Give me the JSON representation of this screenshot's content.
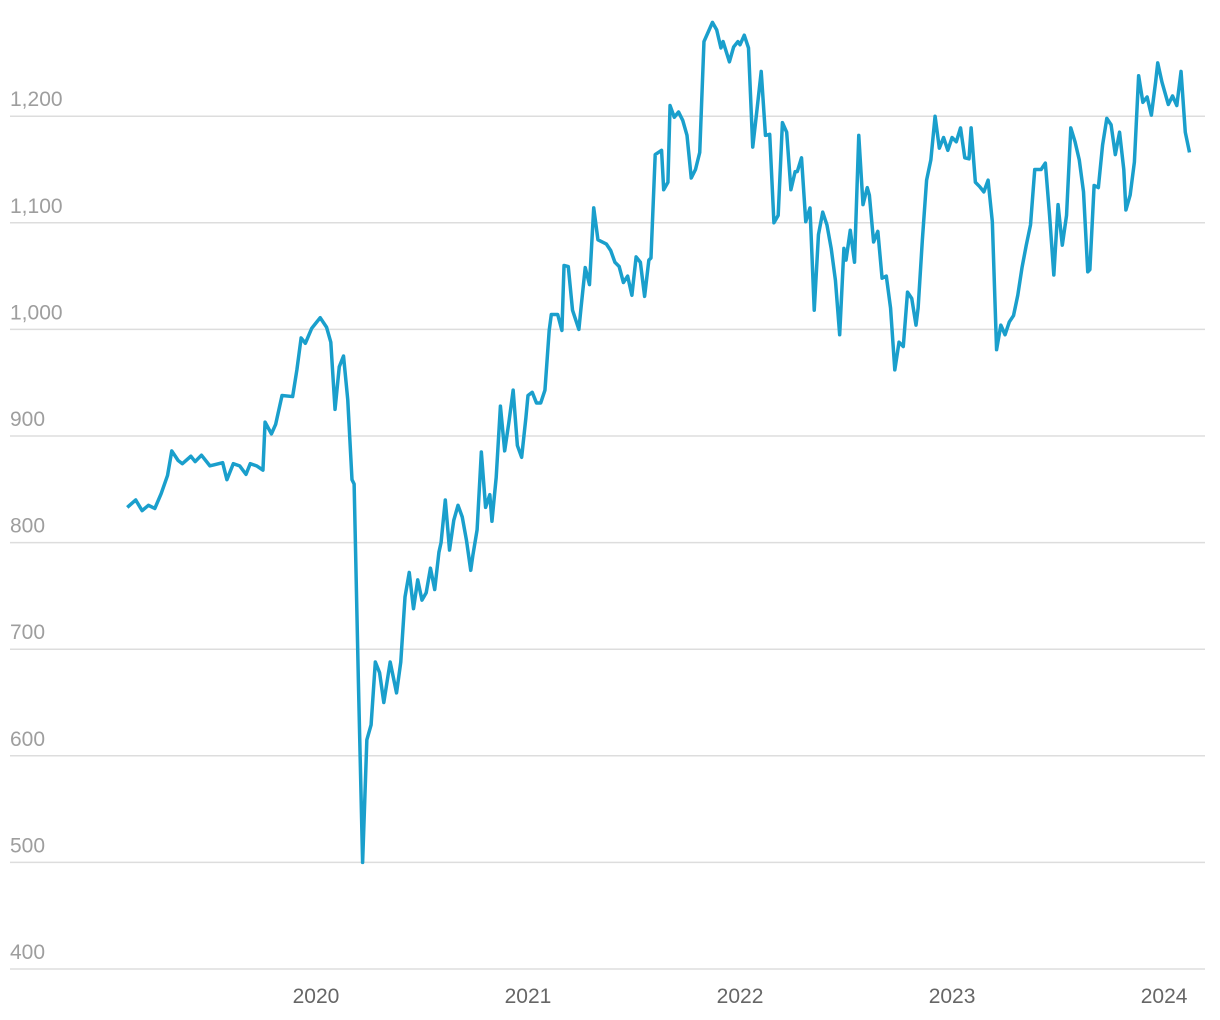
{
  "chart_data": {
    "type": "line",
    "color": "#1a9fcc",
    "grid": true,
    "xlim": [
      2018.557,
      2024.193
    ],
    "xticks": [
      2020,
      2021,
      2022,
      2023,
      2024
    ],
    "ylim": [
      400,
      1300
    ],
    "yticks": [
      400,
      500,
      600,
      700,
      800,
      900,
      {
        "value": 1000,
        "label": "1,000"
      },
      {
        "value": 1100,
        "label": "1,100"
      },
      {
        "value": 1200,
        "label": "1,200"
      }
    ],
    "x": [
      2019.11,
      2019.15,
      2019.18,
      2019.21,
      2019.24,
      2019.27,
      2019.3,
      2019.32,
      2019.35,
      2019.37,
      2019.41,
      2019.43,
      2019.46,
      2019.5,
      2019.52,
      2019.56,
      2019.58,
      2019.61,
      2019.64,
      2019.67,
      2019.69,
      2019.72,
      2019.75,
      2019.76,
      2019.79,
      2019.81,
      2019.84,
      2019.89,
      2019.91,
      2019.93,
      2019.95,
      2019.98,
      2020.0,
      2020.02,
      2020.05,
      2020.07,
      2020.09,
      2020.11,
      2020.13,
      2020.15,
      2020.17,
      2020.18,
      2020.2,
      2020.22,
      2020.24,
      2020.26,
      2020.28,
      2020.3,
      2020.32,
      2020.35,
      2020.38,
      2020.4,
      2020.42,
      2020.44,
      2020.46,
      2020.48,
      2020.5,
      2020.52,
      2020.54,
      2020.56,
      2020.58,
      2020.59,
      2020.61,
      2020.63,
      2020.65,
      2020.67,
      2020.69,
      2020.71,
      2020.73,
      2020.74,
      2020.76,
      2020.78,
      2020.8,
      2020.82,
      2020.83,
      2020.85,
      2020.87,
      2020.89,
      2020.91,
      2020.93,
      2020.95,
      2020.97,
      2020.99,
      2021.0,
      2021.02,
      2021.04,
      2021.06,
      2021.08,
      2021.1,
      2021.11,
      2021.14,
      2021.16,
      2021.17,
      2021.19,
      2021.21,
      2021.24,
      2021.25,
      2021.27,
      2021.29,
      2021.31,
      2021.33,
      2021.35,
      2021.37,
      2021.39,
      2021.41,
      2021.43,
      2021.45,
      2021.47,
      2021.49,
      2021.51,
      2021.53,
      2021.55,
      2021.57,
      2021.58,
      2021.6,
      2021.63,
      2021.64,
      2021.66,
      2021.67,
      2021.69,
      2021.71,
      2021.73,
      2021.75,
      2021.77,
      2021.79,
      2021.81,
      2021.83,
      2021.85,
      2021.87,
      2021.89,
      2021.91,
      2021.92,
      2021.95,
      2021.97,
      2021.99,
      2022.0,
      2022.02,
      2022.04,
      2022.06,
      2022.08,
      2022.1,
      2022.12,
      2022.14,
      2022.16,
      2022.18,
      2022.2,
      2022.22,
      2022.24,
      2022.26,
      2022.27,
      2022.29,
      2022.31,
      2022.33,
      2022.35,
      2022.37,
      2022.39,
      2022.41,
      2022.43,
      2022.45,
      2022.47,
      2022.49,
      2022.5,
      2022.52,
      2022.54,
      2022.56,
      2022.58,
      2022.6,
      2022.61,
      2022.63,
      2022.65,
      2022.67,
      2022.69,
      2022.71,
      2022.73,
      2022.75,
      2022.77,
      2022.79,
      2022.81,
      2022.83,
      2022.84,
      2022.86,
      2022.88,
      2022.9,
      2022.92,
      2022.94,
      2022.96,
      2022.98,
      2023.0,
      2023.02,
      2023.04,
      2023.06,
      2023.08,
      2023.09,
      2023.11,
      2023.13,
      2023.15,
      2023.17,
      2023.19,
      2023.21,
      2023.23,
      2023.25,
      2023.27,
      2023.29,
      2023.31,
      2023.33,
      2023.35,
      2023.37,
      2023.39,
      2023.41,
      2023.42,
      2023.44,
      2023.46,
      2023.48,
      2023.5,
      2023.52,
      2023.54,
      2023.56,
      2023.58,
      2023.6,
      2023.62,
      2023.64,
      2023.65,
      2023.67,
      2023.69,
      2023.71,
      2023.73,
      2023.75,
      2023.77,
      2023.79,
      2023.81,
      2023.82,
      2023.84,
      2023.86,
      2023.88,
      2023.9,
      2023.92,
      2023.94,
      2023.96,
      2023.97,
      2023.99,
      2024.02,
      2024.04,
      2024.06,
      2024.08,
      2024.1,
      2024.12
    ],
    "values": [
      833,
      840,
      830,
      835,
      832,
      846,
      863,
      886,
      877,
      874,
      881,
      876,
      882,
      872,
      873,
      875,
      859,
      874,
      872,
      864,
      874,
      872,
      868,
      913,
      902,
      911,
      938,
      937,
      962,
      992,
      987,
      1001,
      1006,
      1011,
      1002,
      988,
      925,
      965,
      975,
      934,
      859,
      855,
      671,
      500,
      615,
      629,
      688,
      678,
      650,
      688,
      659,
      688,
      749,
      772,
      738,
      765,
      746,
      753,
      776,
      756,
      791,
      800,
      840,
      793,
      821,
      835,
      824,
      802,
      774,
      788,
      812,
      885,
      833,
      845,
      820,
      861,
      928,
      886,
      913,
      943,
      891,
      880,
      917,
      938,
      941,
      931,
      931,
      943,
      999,
      1014,
      1014,
      999,
      1060,
      1059,
      1018,
      1000,
      1020,
      1058,
      1042,
      1114,
      1084,
      1082,
      1080,
      1074,
      1063,
      1059,
      1044,
      1050,
      1032,
      1068,
      1063,
      1031,
      1065,
      1067,
      1164,
      1168,
      1131,
      1138,
      1210,
      1199,
      1204,
      1196,
      1182,
      1142,
      1150,
      1166,
      1270,
      1279,
      1288,
      1281,
      1264,
      1270,
      1251,
      1265,
      1270,
      1267,
      1276,
      1264,
      1171,
      1206,
      1242,
      1182,
      1183,
      1100,
      1107,
      1194,
      1185,
      1131,
      1148,
      1148,
      1161,
      1101,
      1114,
      1018,
      1089,
      1110,
      1098,
      1076,
      1046,
      995,
      1076,
      1065,
      1093,
      1063,
      1182,
      1117,
      1133,
      1126,
      1082,
      1092,
      1048,
      1050,
      1020,
      962,
      988,
      984,
      1035,
      1029,
      1004,
      1020,
      1084,
      1140,
      1159,
      1200,
      1170,
      1180,
      1168,
      1180,
      1176,
      1189,
      1161,
      1160,
      1189,
      1138,
      1134,
      1129,
      1140,
      1101,
      981,
      1004,
      995,
      1007,
      1013,
      1032,
      1058,
      1079,
      1098,
      1150,
      1150,
      1150,
      1156,
      1107,
      1051,
      1117,
      1079,
      1107,
      1189,
      1176,
      1159,
      1129,
      1054,
      1056,
      1135,
      1133,
      1173,
      1198,
      1192,
      1164,
      1185,
      1150,
      1112,
      1126,
      1157,
      1238,
      1213,
      1218,
      1201,
      1232,
      1250,
      1232,
      1211,
      1219,
      1210,
      1242,
      1185,
      1166
    ]
  }
}
